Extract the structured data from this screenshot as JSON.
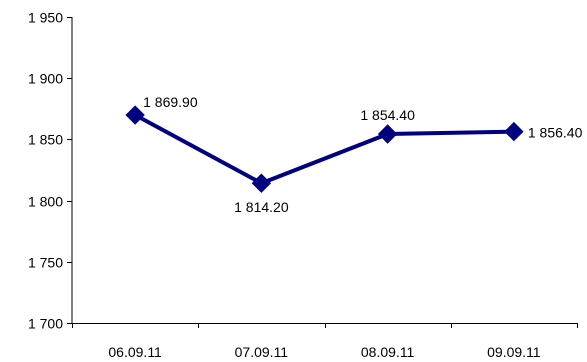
{
  "chart_data": {
    "type": "line",
    "title": "",
    "xlabel": "",
    "ylabel": "",
    "categories": [
      "06.09.11",
      "07.09.11",
      "08.09.11",
      "09.09.11"
    ],
    "series": [
      {
        "values": [
          1869.9,
          1814.2,
          1854.4,
          1856.4
        ],
        "labels": [
          "1 869.90",
          "1 814.20",
          "1 854.40",
          "1 856.40"
        ],
        "color": "#000080",
        "marker": "diamond"
      }
    ],
    "ylim": [
      1700,
      1950
    ],
    "yticks": [
      1700,
      1750,
      1800,
      1850,
      1900,
      1950
    ],
    "ytick_labels": [
      "1 700",
      "1 750",
      "1 800",
      "1 850",
      "1 900",
      "1 950"
    ],
    "grid": false,
    "legend": "none"
  }
}
